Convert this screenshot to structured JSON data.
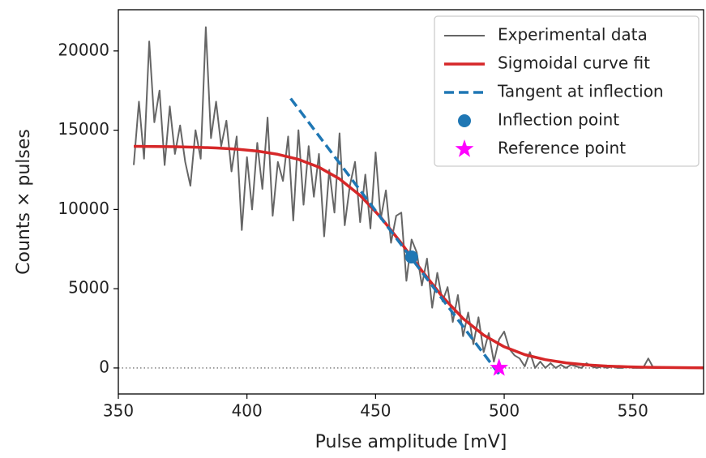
{
  "chart_data": {
    "type": "line",
    "x_label": "Pulse amplitude [mV]",
    "y_label": "Counts × pulses",
    "xlim": [
      350,
      577.5
    ],
    "ylim": [
      -1640,
      22600
    ],
    "xticks": [
      350,
      400,
      450,
      500,
      550
    ],
    "yticks": [
      0,
      5000,
      10000,
      15000,
      20000
    ],
    "reference_line": 0,
    "legend": "upper right",
    "series": [
      {
        "name": "Experimental data",
        "color": "#666666",
        "style": "solid",
        "width": 2,
        "x": [
          356,
          358,
          360,
          362,
          364,
          366,
          368,
          370,
          372,
          374,
          376,
          378,
          380,
          382,
          384,
          386,
          388,
          390,
          392,
          394,
          396,
          398,
          400,
          402,
          404,
          406,
          408,
          410,
          412,
          414,
          416,
          418,
          420,
          422,
          424,
          426,
          428,
          430,
          432,
          434,
          436,
          438,
          440,
          442,
          444,
          446,
          448,
          450,
          452,
          454,
          456,
          458,
          460,
          462,
          464,
          466,
          468,
          470,
          472,
          474,
          476,
          478,
          480,
          482,
          484,
          486,
          488,
          490,
          492,
          494,
          496,
          498,
          500,
          502,
          504,
          506,
          508,
          510,
          512,
          514,
          516,
          518,
          520,
          522,
          524,
          526,
          528,
          530,
          532,
          534,
          536,
          538,
          540,
          542,
          544,
          546,
          548,
          550,
          552,
          554,
          556,
          558,
          560,
          562,
          564,
          566,
          568,
          570,
          572,
          574,
          576
        ],
        "values": [
          12800,
          16800,
          13200,
          20600,
          15500,
          17500,
          12800,
          16500,
          13500,
          15300,
          13000,
          11500,
          15000,
          13200,
          21500,
          14500,
          16800,
          14000,
          15600,
          12400,
          14600,
          8700,
          13300,
          10000,
          14200,
          11300,
          15800,
          9600,
          13000,
          11800,
          14600,
          9300,
          15000,
          10300,
          14000,
          10800,
          13500,
          8300,
          12500,
          9800,
          14800,
          9000,
          11500,
          13000,
          9200,
          12200,
          8800,
          13600,
          9400,
          11200,
          7900,
          9600,
          9800,
          5500,
          8100,
          7300,
          5200,
          6900,
          3800,
          6000,
          4200,
          5100,
          2900,
          4600,
          2000,
          3500,
          1500,
          3200,
          1000,
          2200,
          400,
          1800,
          2300,
          1200,
          800,
          600,
          100,
          1000,
          0,
          400,
          0,
          300,
          0,
          200,
          0,
          200,
          100,
          0,
          300,
          100,
          0,
          100,
          0,
          100,
          0,
          0,
          100,
          0,
          0,
          0,
          600,
          0,
          0,
          0,
          0,
          0,
          0,
          0,
          0,
          0,
          0
        ]
      },
      {
        "name": "Sigmoidal curve fit",
        "color": "#d62728",
        "style": "solid",
        "width": 3.5,
        "x": [
          356,
          364,
          372,
          380,
          388,
          396,
          404,
          412,
          420,
          428,
          436,
          444,
          452,
          460,
          468,
          476,
          484,
          492,
          500,
          508,
          516,
          524,
          532,
          540,
          548,
          556,
          564,
          572,
          578
        ],
        "values": [
          13984,
          13973,
          13956,
          13927,
          13880,
          13803,
          13679,
          13477,
          13159,
          12665,
          11927,
          10882,
          9508,
          7870,
          6129,
          4492,
          3118,
          2073,
          1335,
          841,
          525,
          322,
          197,
          120,
          73,
          45,
          27,
          16,
          11
        ]
      },
      {
        "name": "Tangent at inflection",
        "color": "#1f77b4",
        "style": "dashed",
        "width": 3.5,
        "x": [
          417,
          499
        ],
        "values": [
          17000,
          -600
        ]
      },
      {
        "name": "Inflection point",
        "color": "#1f77b4",
        "style": "circle",
        "x": [
          464
        ],
        "values": [
          7000
        ]
      },
      {
        "name": "Reference point",
        "color": "#ff00ff",
        "style": "star",
        "x": [
          498
        ],
        "values": [
          0
        ]
      }
    ]
  }
}
